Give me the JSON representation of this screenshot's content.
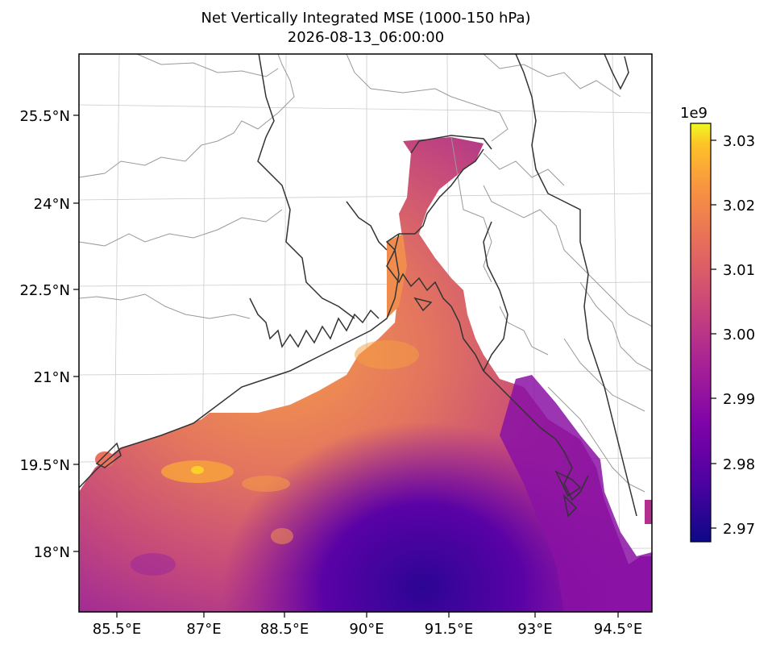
{
  "title": "Net Vertically Integrated MSE (1000-150 hPa)",
  "subtitle": "2026-08-13_06:00:00",
  "colormap": "plasma",
  "x_tick_labels": [
    "85.5°E",
    "87°E",
    "88.5°E",
    "90°E",
    "91.5°E",
    "93°E",
    "94.5°E"
  ],
  "y_tick_labels": [
    "25.5°N",
    "24°N",
    "22.5°N",
    "21°N",
    "19.5°N",
    "18°N"
  ],
  "colorbar": {
    "multiplier": "1e9",
    "ticks": [
      "3.03",
      "3.02",
      "3.01",
      "3.00",
      "2.99",
      "2.98",
      "2.97"
    ],
    "min": 2.968,
    "max": 3.033
  }
}
